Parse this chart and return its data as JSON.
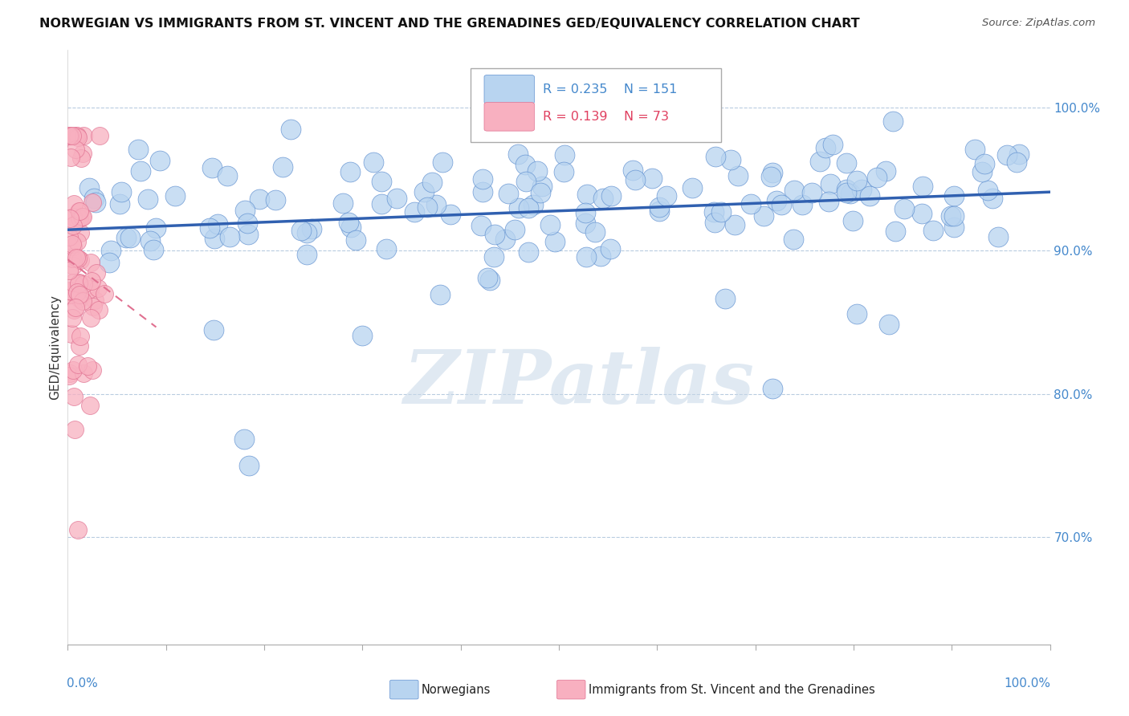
{
  "title": "NORWEGIAN VS IMMIGRANTS FROM ST. VINCENT AND THE GRENADINES GED/EQUIVALENCY CORRELATION CHART",
  "source": "Source: ZipAtlas.com",
  "ylabel": "GED/Equivalency",
  "legend_blue_r": "R = 0.235",
  "legend_blue_n": "N = 151",
  "legend_pink_r": "R = 0.139",
  "legend_pink_n": "N = 73",
  "legend_blue_label": "Norwegians",
  "legend_pink_label": "Immigrants from St. Vincent and the Grenadines",
  "watermark": "ZIPatlas",
  "xmin": 0.0,
  "xmax": 1.0,
  "ymin": 0.625,
  "ymax": 1.04,
  "yticks": [
    0.7,
    0.8,
    0.9,
    1.0
  ],
  "ytick_labels": [
    "70.0%",
    "80.0%",
    "90.0%",
    "100.0%"
  ],
  "blue_color": "#b8d4f0",
  "blue_line_color": "#3060b0",
  "blue_edge_color": "#6090d0",
  "pink_color": "#f8b0c0",
  "pink_line_color": "#e04060",
  "pink_edge_color": "#e07090",
  "background_color": "#ffffff",
  "grid_color": "#b8cce0",
  "tick_label_color": "#4488cc",
  "title_fontsize": 11.5
}
